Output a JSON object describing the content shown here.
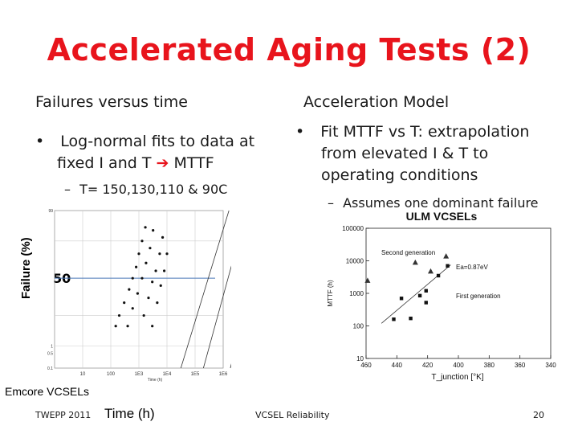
{
  "slide": {
    "title": "Accelerated Aging Tests (2)",
    "left_heading": "Failures versus time",
    "left_bullet_pre": "Log-normal fits to data at",
    "left_bullet_line2_pre": "fixed I and T",
    "left_bullet_line2_post": "MTTF",
    "left_sub": "T= 150,130,110 & 90C",
    "right_heading": "Acceleration Model",
    "right_bullet_line1": "Fit MTTF vs T: extrapolation",
    "right_bullet_line2": "from elevated I & T to",
    "right_bullet_line3": "operating conditions",
    "right_sub": "Assumes one dominant failure",
    "y_label": "Failure (%)",
    "fifty_label": "50",
    "x_label": "Time (h)",
    "left_caption": "Emcore VCSELs",
    "footer_left": "TWEPP 2011",
    "footer_center": "VCSEL Reliability",
    "footer_page": "20",
    "colors": {
      "title": "#e8141c",
      "arrow": "#e8141c",
      "fifty_line": "#4a78b8",
      "text": "#1a1a1a"
    }
  },
  "chart_data": [
    {
      "type": "scatter",
      "title": "",
      "xlabel": "Time (h)",
      "ylabel": "Failure (%)",
      "x_scale": "log",
      "y_scale": "log-normal probability",
      "xlim": [
        1,
        1000000
      ],
      "x_ticks": [
        "10",
        "100",
        "1E3",
        "1E4",
        "1E5",
        "1E6"
      ],
      "x_ticks_axis": "Time (h)",
      "y_ticks": [
        "99",
        "1",
        "0.5",
        "0.1"
      ],
      "annotation": "50",
      "series": [
        {
          "temperature_c": 150,
          "x": [
            150,
            200,
            300,
            450,
            600,
            800,
            1000,
            1300,
            1700
          ],
          "y": [
            5,
            10,
            20,
            35,
            50,
            65,
            80,
            90,
            96
          ]
        },
        {
          "temperature_c": 130,
          "x": [
            400,
            600,
            900,
            1300,
            1800,
            2500,
            3200
          ],
          "y": [
            5,
            15,
            30,
            50,
            70,
            85,
            95
          ]
        },
        {
          "temperature_c": 110,
          "x": [
            1500,
            2200,
            3000,
            4000,
            5500,
            7000
          ],
          "y": [
            10,
            25,
            45,
            60,
            80,
            92
          ]
        },
        {
          "temperature_c": 90,
          "x": [
            3000,
            4500,
            6000,
            8000,
            10000
          ],
          "y": [
            5,
            20,
            40,
            60,
            80
          ]
        }
      ],
      "grid": true
    },
    {
      "type": "scatter",
      "title": "ULM VCSELs",
      "xlabel": "T_junction [°K]",
      "ylabel": "MTTF (h)",
      "y_scale": "log",
      "xlim": [
        460,
        340
      ],
      "ylim": [
        10,
        100000
      ],
      "x_ticks": [
        "460",
        "440",
        "420",
        "400",
        "380",
        "360",
        "340"
      ],
      "y_ticks": [
        "100000",
        "10000",
        "1000",
        "100",
        "10"
      ],
      "annotations": [
        "Second generation",
        "First generation",
        "Ea=0.87eV"
      ],
      "series": [
        {
          "name": "Second generation",
          "marker": "triangle",
          "x": [
            459,
            428,
            418,
            408
          ],
          "y": [
            2500,
            9000,
            4800,
            14000
          ]
        },
        {
          "name": "First generation",
          "marker": "square",
          "x": [
            442,
            437,
            431,
            425,
            421,
            421,
            413,
            407
          ],
          "y": [
            160,
            700,
            170,
            850,
            520,
            1200,
            3500,
            7000
          ]
        }
      ],
      "fit_line": {
        "label": "Ea=0.87eV",
        "x": [
          450,
          405
        ],
        "y": [
          120,
          7500
        ]
      },
      "grid": true
    }
  ]
}
